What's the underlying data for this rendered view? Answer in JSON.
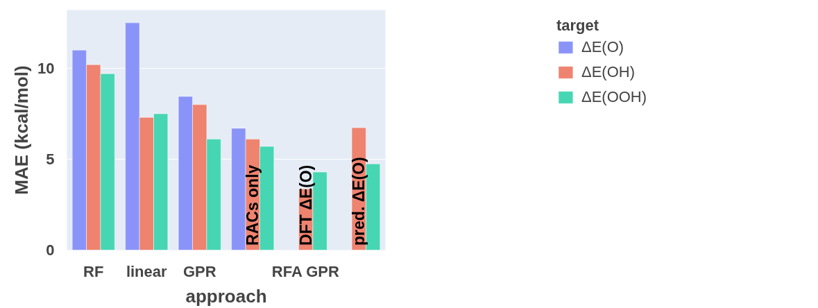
{
  "chart_data": {
    "type": "bar",
    "xlabel": "approach",
    "ylabel": "MAE (kcal/mol)",
    "legend_title": "target",
    "categories": [
      "RF",
      "linear",
      "GPR",
      null,
      "RFA GPR",
      null
    ],
    "series": [
      {
        "name": "ΔE(O)",
        "color": "#8a94f8",
        "values": [
          11.0,
          12.5,
          8.45,
          6.7,
          null,
          null
        ]
      },
      {
        "name": "ΔE(OH)",
        "color": "#ee8370",
        "values": [
          10.2,
          7.3,
          8.0,
          6.1,
          3.37,
          6.73
        ]
      },
      {
        "name": "ΔE(OOH)",
        "color": "#46d6b3",
        "values": [
          9.7,
          7.5,
          6.1,
          5.7,
          4.29,
          4.74
        ]
      }
    ],
    "annotations": [
      "RACs only",
      "DFT ΔE(O)",
      "pred. ΔE(O)"
    ],
    "ylim": [
      0,
      13.2
    ],
    "yticks": [
      0,
      5,
      10
    ],
    "grid": "y",
    "legend": "right"
  }
}
